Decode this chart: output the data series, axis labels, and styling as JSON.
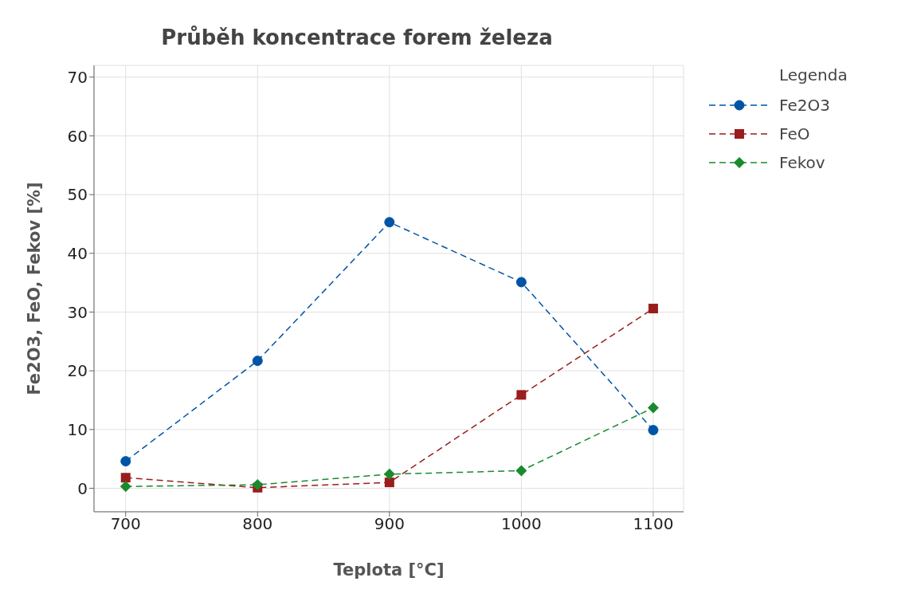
{
  "chart_data": {
    "type": "line",
    "title": "Průběh koncentrace forem železa",
    "xlabel": "Teplota [°C]",
    "ylabel": "Fe2O3, FeO, Fekov [%]",
    "legend_title": "Legenda",
    "x": [
      700,
      800,
      900,
      1000,
      1100
    ],
    "series": [
      {
        "name": "Fe2O3",
        "color": "#0054a6",
        "marker": "circle",
        "values": [
          4.6,
          21.7,
          45.3,
          35.1,
          9.9
        ]
      },
      {
        "name": "FeO",
        "color": "#9b1c1c",
        "marker": "square",
        "values": [
          1.8,
          0.1,
          1.0,
          15.9,
          30.6
        ]
      },
      {
        "name": "Fekov",
        "color": "#1a8a2e",
        "marker": "diamond",
        "values": [
          0.3,
          0.6,
          2.4,
          3.0,
          13.7
        ]
      }
    ],
    "xlim": [
      676,
      1123
    ],
    "xticks": [
      700,
      800,
      900,
      1000,
      1100
    ],
    "ylim": [
      -4,
      72
    ],
    "yticks": [
      0,
      10,
      20,
      30,
      40,
      50,
      60,
      70
    ],
    "grid": true,
    "legend": "top right",
    "line_style": "dashed"
  }
}
